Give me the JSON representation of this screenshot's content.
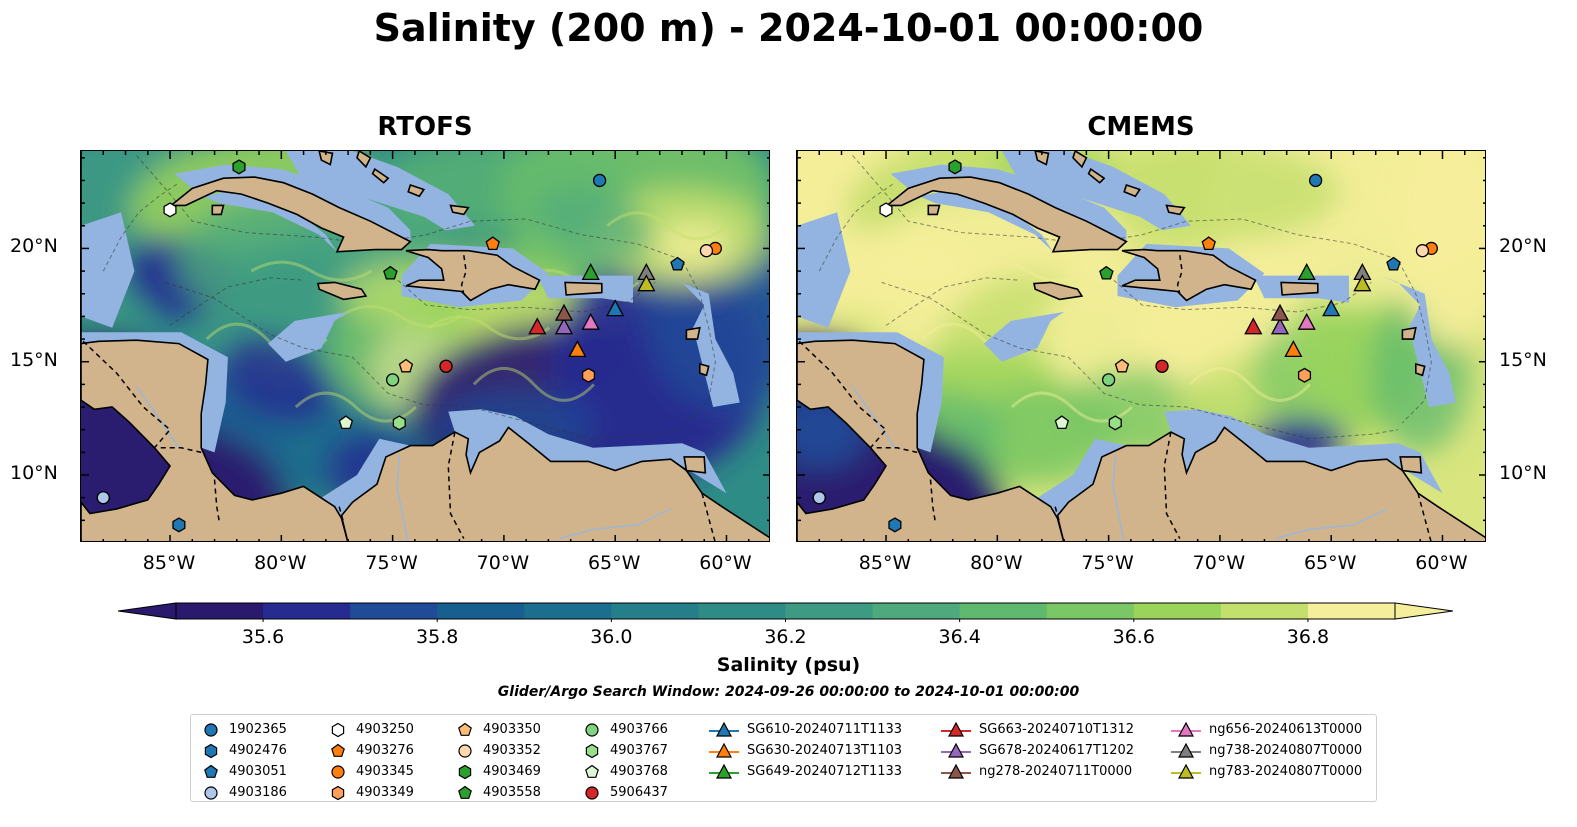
{
  "title": "Salinity (200 m) - 2024-10-01 00:00:00",
  "panels": [
    {
      "title": "RTOFS"
    },
    {
      "title": "CMEMS"
    }
  ],
  "lat_labels": [
    "20°N",
    "15°N",
    "10°N"
  ],
  "lat_values": [
    20,
    15,
    10
  ],
  "lon_labels": [
    "85°W",
    "80°W",
    "75°W",
    "70°W",
    "65°W",
    "60°W"
  ],
  "lon_values": [
    -85,
    -80,
    -75,
    -70,
    -65,
    -60
  ],
  "extent": {
    "lon_min": -89,
    "lon_max": -58,
    "lat_min": 7,
    "lat_max": 24.3
  },
  "colorbar": {
    "label": "Salinity (psu)",
    "ticks": [
      "35.6",
      "35.8",
      "36.0",
      "36.2",
      "36.4",
      "36.6",
      "36.8"
    ],
    "tick_values": [
      35.6,
      35.8,
      36.0,
      36.2,
      36.4,
      36.6,
      36.8
    ],
    "min": 35.5,
    "max": 36.9,
    "colors": [
      "#2a1a6e",
      "#262b91",
      "#1f4b98",
      "#175f8f",
      "#1b6e8d",
      "#257f8a",
      "#2e8c86",
      "#3d9a83",
      "#4eaa7d",
      "#5fb96f",
      "#7ac765",
      "#9bd45b",
      "#c3df6c",
      "#f5ee9a"
    ]
  },
  "search_window": "Glider/Argo Search Window: 2024-09-26 00:00:00 to 2024-10-01 00:00:00",
  "colors": {
    "land": "#d2b48c",
    "shelf": "#93b4e0"
  },
  "legend": {
    "argo": [
      {
        "id": "1902365",
        "marker": "circle",
        "color": "#1f77b4",
        "lon": -65.7,
        "lat": 23.0
      },
      {
        "id": "4902476",
        "marker": "hexagon",
        "color": "#1f77b4",
        "lon": -84.6,
        "lat": 7.8
      },
      {
        "id": "4903051",
        "marker": "pentagon",
        "color": "#1f77b4",
        "lon": -62.2,
        "lat": 19.3
      },
      {
        "id": "4903186",
        "marker": "circle",
        "color": "#aec7e8",
        "lon": -88.0,
        "lat": 9.0
      },
      {
        "id": "4903250",
        "marker": "hexagon",
        "color": "#ffffff",
        "lon": -85.0,
        "lat": 21.7
      },
      {
        "id": "4903276",
        "marker": "pentagon",
        "color": "#ff7f0e",
        "lon": -70.5,
        "lat": 20.2
      },
      {
        "id": "4903345",
        "marker": "circle",
        "color": "#ff7f0e",
        "lon": -60.5,
        "lat": 20.0
      },
      {
        "id": "4903349",
        "marker": "hexagon",
        "color": "#ff9f5a",
        "lon": -66.2,
        "lat": 14.4
      },
      {
        "id": "4903350",
        "marker": "pentagon",
        "color": "#ffbb78",
        "lon": -74.4,
        "lat": 14.8
      },
      {
        "id": "4903352",
        "marker": "circle",
        "color": "#ffd8b0",
        "lon": -60.9,
        "lat": 19.9
      },
      {
        "id": "4903469",
        "marker": "hexagon",
        "color": "#2ca02c",
        "lon": -81.9,
        "lat": 23.6
      },
      {
        "id": "4903558",
        "marker": "pentagon",
        "color": "#2ca02c",
        "lon": -75.1,
        "lat": 18.9
      },
      {
        "id": "4903766",
        "marker": "circle",
        "color": "#7ed37e",
        "lon": -75.0,
        "lat": 14.2
      },
      {
        "id": "4903767",
        "marker": "hexagon",
        "color": "#98df8a",
        "lon": -74.7,
        "lat": 12.3
      },
      {
        "id": "4903768",
        "marker": "pentagon",
        "color": "#ddf7d0",
        "lon": -77.1,
        "lat": 12.3
      },
      {
        "id": "5906437",
        "marker": "circle",
        "color": "#d62728",
        "lon": -72.6,
        "lat": 14.8
      }
    ],
    "gliders": [
      {
        "id": "SG610-20240711T1133",
        "color": "#1f77b4",
        "lon": -65.0,
        "lat": 17.3
      },
      {
        "id": "SG630-20240713T1103",
        "color": "#ff7f0e",
        "lon": -66.7,
        "lat": 15.5
      },
      {
        "id": "SG649-20240712T1133",
        "color": "#2ca02c",
        "lon": -66.1,
        "lat": 18.9
      },
      {
        "id": "SG663-20240710T1312",
        "color": "#d62728",
        "lon": -68.5,
        "lat": 16.5
      },
      {
        "id": "SG678-20240617T1202",
        "color": "#9467bd",
        "lon": -67.3,
        "lat": 16.5
      },
      {
        "id": "ng278-20240711T0000",
        "color": "#8c564b",
        "lon": -67.3,
        "lat": 17.1
      },
      {
        "id": "ng656-20240613T0000",
        "color": "#e377c2",
        "lon": -66.1,
        "lat": 16.7
      },
      {
        "id": "ng738-20240807T0000",
        "color": "#7f7f7f",
        "lon": -63.6,
        "lat": 18.9
      },
      {
        "id": "ng783-20240807T0000",
        "color": "#bcbd22",
        "lon": -63.6,
        "lat": 18.4
      }
    ]
  }
}
